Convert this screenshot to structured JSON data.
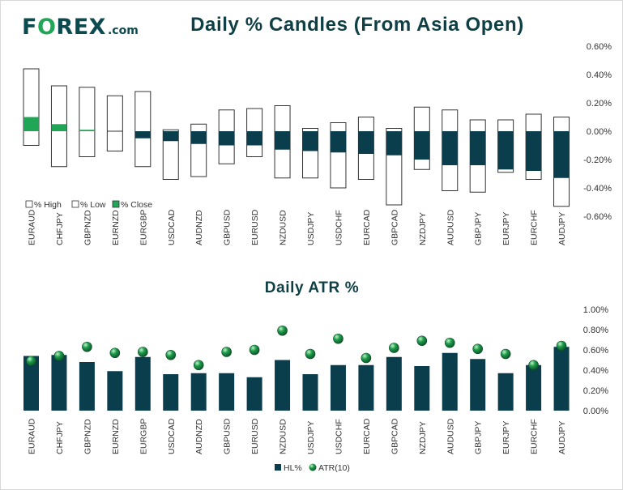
{
  "brand": {
    "logo_pre": "F",
    "logo_o": "O",
    "logo_post": "REX",
    "logo_domain": ".com"
  },
  "colors": {
    "dark": "#0b3e4d",
    "green": "#21a556",
    "white": "#ffffff",
    "outline": "#333333",
    "atr_marker": "#1e9b4a"
  },
  "chart_data": [
    {
      "type": "bar",
      "subtype": "floating-candles",
      "title": "Daily % Candles (From Asia Open)",
      "categories": [
        "EURAUD",
        "CHFJPY",
        "GBPNZD",
        "EURNZD",
        "EURGBP",
        "USDCAD",
        "AUDNZD",
        "GBPUSD",
        "EURUSD",
        "NZDUSD",
        "USDJPY",
        "USDCHF",
        "EURCAD",
        "GBPCAD",
        "NZDJPY",
        "AUDUSD",
        "GBPJPY",
        "EURJPY",
        "EURCHF",
        "AUDJPY"
      ],
      "series": [
        {
          "name": "% High",
          "values": [
            0.44,
            0.32,
            0.31,
            0.25,
            0.28,
            0.01,
            0.05,
            0.15,
            0.16,
            0.18,
            0.02,
            0.06,
            0.1,
            0.02,
            0.17,
            0.15,
            0.08,
            0.08,
            0.12,
            0.1
          ]
        },
        {
          "name": "% Low",
          "values": [
            -0.1,
            -0.25,
            -0.18,
            -0.14,
            -0.25,
            -0.34,
            -0.32,
            -0.23,
            -0.18,
            -0.33,
            -0.33,
            -0.4,
            -0.34,
            -0.52,
            -0.27,
            -0.42,
            -0.43,
            -0.29,
            -0.34,
            -0.53
          ]
        },
        {
          "name": "% Close",
          "values": [
            0.1,
            0.05,
            0.01,
            0.0,
            -0.05,
            -0.07,
            -0.09,
            -0.1,
            -0.1,
            -0.13,
            -0.14,
            -0.15,
            -0.16,
            -0.17,
            -0.2,
            -0.24,
            -0.24,
            -0.27,
            -0.28,
            -0.33
          ]
        }
      ],
      "legend": [
        "% High",
        "% Low",
        "% Close"
      ],
      "legend_position": "bottom-left",
      "ylim": [
        -0.6,
        0.6
      ],
      "yticks": [
        "0.60%",
        "0.40%",
        "0.20%",
        "0.00%",
        "-0.20%",
        "-0.40%",
        "-0.60%"
      ],
      "grid": false
    },
    {
      "type": "bar",
      "title": "Daily ATR %",
      "categories": [
        "EURAUD",
        "CHFJPY",
        "GBPNZD",
        "EURNZD",
        "EURGBP",
        "USDCAD",
        "AUDNZD",
        "GBPUSD",
        "EURUSD",
        "NZDUSD",
        "USDJPY",
        "USDCHF",
        "EURCAD",
        "GBPCAD",
        "NZDJPY",
        "AUDUSD",
        "GBPJPY",
        "EURJPY",
        "EURCHF",
        "AUDJPY"
      ],
      "series": [
        {
          "name": "HL%",
          "kind": "bar",
          "values": [
            0.54,
            0.55,
            0.48,
            0.39,
            0.53,
            0.36,
            0.37,
            0.37,
            0.33,
            0.5,
            0.36,
            0.45,
            0.45,
            0.53,
            0.44,
            0.57,
            0.51,
            0.37,
            0.45,
            0.63
          ]
        },
        {
          "name": "ATR(10)",
          "kind": "marker",
          "values": [
            0.49,
            0.54,
            0.63,
            0.57,
            0.58,
            0.55,
            0.45,
            0.58,
            0.6,
            0.79,
            0.56,
            0.71,
            0.52,
            0.62,
            0.69,
            0.67,
            0.61,
            0.56,
            0.45,
            0.64
          ]
        }
      ],
      "legend": [
        "HL%",
        "ATR(10)"
      ],
      "legend_position": "bottom-center",
      "ylim": [
        0,
        1.0
      ],
      "yticks": [
        "1.00%",
        "0.80%",
        "0.60%",
        "0.40%",
        "0.20%",
        "0.00%"
      ],
      "grid": false
    }
  ]
}
